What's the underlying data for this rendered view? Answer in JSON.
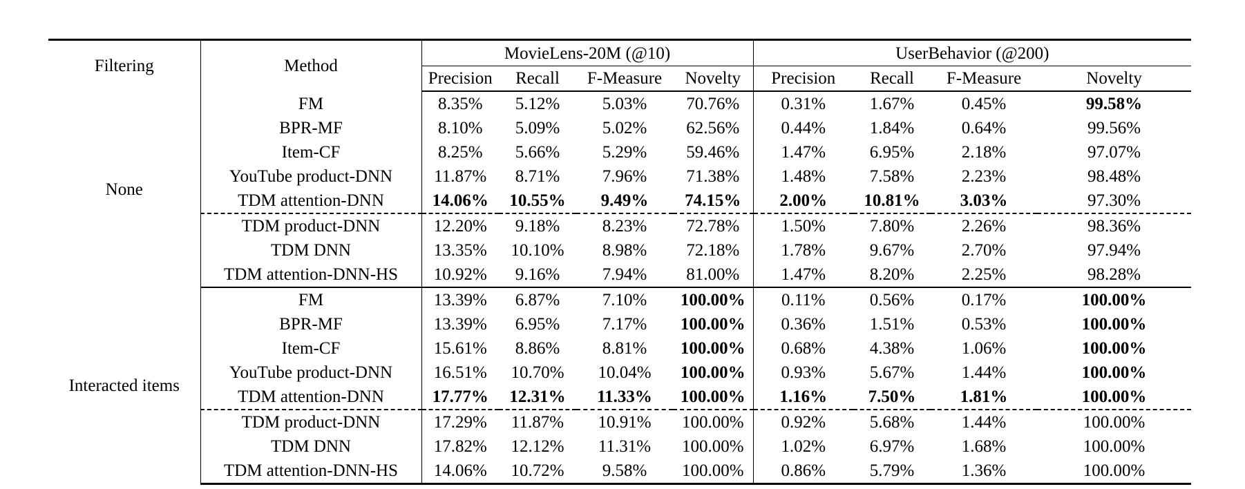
{
  "header": {
    "filtering": "Filtering",
    "method": "Method",
    "group1": "MovieLens-20M (@10)",
    "group2": "UserBehavior (@200)",
    "metrics": [
      "Precision",
      "Recall",
      "F-Measure",
      "Novelty",
      "Precision",
      "Recall",
      "F-Measure",
      "Novelty"
    ]
  },
  "sections": [
    {
      "filter": "None",
      "rows": [
        {
          "method": "FM",
          "values": [
            "8.35%",
            "5.12%",
            "5.03%",
            "70.76%",
            "0.31%",
            "1.67%",
            "0.45%",
            "99.58%"
          ],
          "bold": [
            false,
            false,
            false,
            false,
            false,
            false,
            false,
            true
          ]
        },
        {
          "method": "BPR-MF",
          "values": [
            "8.10%",
            "5.09%",
            "5.02%",
            "62.56%",
            "0.44%",
            "1.84%",
            "0.64%",
            "99.56%"
          ],
          "bold": [
            false,
            false,
            false,
            false,
            false,
            false,
            false,
            false
          ]
        },
        {
          "method": "Item-CF",
          "values": [
            "8.25%",
            "5.66%",
            "5.29%",
            "59.46%",
            "1.47%",
            "6.95%",
            "2.18%",
            "97.07%"
          ],
          "bold": [
            false,
            false,
            false,
            false,
            false,
            false,
            false,
            false
          ]
        },
        {
          "method": "YouTube product-DNN",
          "values": [
            "11.87%",
            "8.71%",
            "7.96%",
            "71.38%",
            "1.48%",
            "7.58%",
            "2.23%",
            "98.48%"
          ],
          "bold": [
            false,
            false,
            false,
            false,
            false,
            false,
            false,
            false
          ]
        },
        {
          "method": "TDM attention-DNN",
          "values": [
            "14.06%",
            "10.55%",
            "9.49%",
            "74.15%",
            "2.00%",
            "10.81%",
            "3.03%",
            "97.30%"
          ],
          "bold": [
            true,
            true,
            true,
            true,
            true,
            true,
            true,
            false
          ]
        },
        {
          "method": "TDM product-DNN",
          "values": [
            "12.20%",
            "9.18%",
            "8.23%",
            "72.78%",
            "1.50%",
            "7.80%",
            "2.26%",
            "98.36%"
          ],
          "bold": [
            false,
            false,
            false,
            false,
            false,
            false,
            false,
            false
          ]
        },
        {
          "method": "TDM DNN",
          "values": [
            "13.35%",
            "10.10%",
            "8.98%",
            "72.18%",
            "1.78%",
            "9.67%",
            "2.70%",
            "97.94%"
          ],
          "bold": [
            false,
            false,
            false,
            false,
            false,
            false,
            false,
            false
          ]
        },
        {
          "method": "TDM attention-DNN-HS",
          "values": [
            "10.92%",
            "9.16%",
            "7.94%",
            "81.00%",
            "1.47%",
            "8.20%",
            "2.25%",
            "98.28%"
          ],
          "bold": [
            false,
            false,
            false,
            false,
            false,
            false,
            false,
            false
          ]
        }
      ]
    },
    {
      "filter": "Interacted items",
      "rows": [
        {
          "method": "FM",
          "values": [
            "13.39%",
            "6.87%",
            "7.10%",
            "100.00%",
            "0.11%",
            "0.56%",
            "0.17%",
            "100.00%"
          ],
          "bold": [
            false,
            false,
            false,
            true,
            false,
            false,
            false,
            true
          ]
        },
        {
          "method": "BPR-MF",
          "values": [
            "13.39%",
            "6.95%",
            "7.17%",
            "100.00%",
            "0.36%",
            "1.51%",
            "0.53%",
            "100.00%"
          ],
          "bold": [
            false,
            false,
            false,
            true,
            false,
            false,
            false,
            true
          ]
        },
        {
          "method": "Item-CF",
          "values": [
            "15.61%",
            "8.86%",
            "8.81%",
            "100.00%",
            "0.68%",
            "4.38%",
            "1.06%",
            "100.00%"
          ],
          "bold": [
            false,
            false,
            false,
            true,
            false,
            false,
            false,
            true
          ]
        },
        {
          "method": "YouTube product-DNN",
          "values": [
            "16.51%",
            "10.70%",
            "10.04%",
            "100.00%",
            "0.93%",
            "5.67%",
            "1.44%",
            "100.00%"
          ],
          "bold": [
            false,
            false,
            false,
            true,
            false,
            false,
            false,
            true
          ]
        },
        {
          "method": "TDM attention-DNN",
          "values": [
            "17.77%",
            "12.31%",
            "11.33%",
            "100.00%",
            "1.16%",
            "7.50%",
            "1.81%",
            "100.00%"
          ],
          "bold": [
            true,
            true,
            true,
            true,
            true,
            true,
            true,
            true
          ]
        },
        {
          "method": "TDM product-DNN",
          "values": [
            "17.29%",
            "11.87%",
            "10.91%",
            "100.00%",
            "0.92%",
            "5.68%",
            "1.44%",
            "100.00%"
          ],
          "bold": [
            false,
            false,
            false,
            false,
            false,
            false,
            false,
            false
          ]
        },
        {
          "method": "TDM DNN",
          "values": [
            "17.82%",
            "12.12%",
            "11.31%",
            "100.00%",
            "1.02%",
            "6.97%",
            "1.68%",
            "100.00%"
          ],
          "bold": [
            false,
            false,
            false,
            false,
            false,
            false,
            false,
            false
          ]
        },
        {
          "method": "TDM attention-DNN-HS",
          "values": [
            "14.06%",
            "10.72%",
            "9.58%",
            "100.00%",
            "0.86%",
            "5.79%",
            "1.36%",
            "100.00%"
          ],
          "bold": [
            false,
            false,
            false,
            false,
            false,
            false,
            false,
            false
          ]
        }
      ]
    }
  ]
}
